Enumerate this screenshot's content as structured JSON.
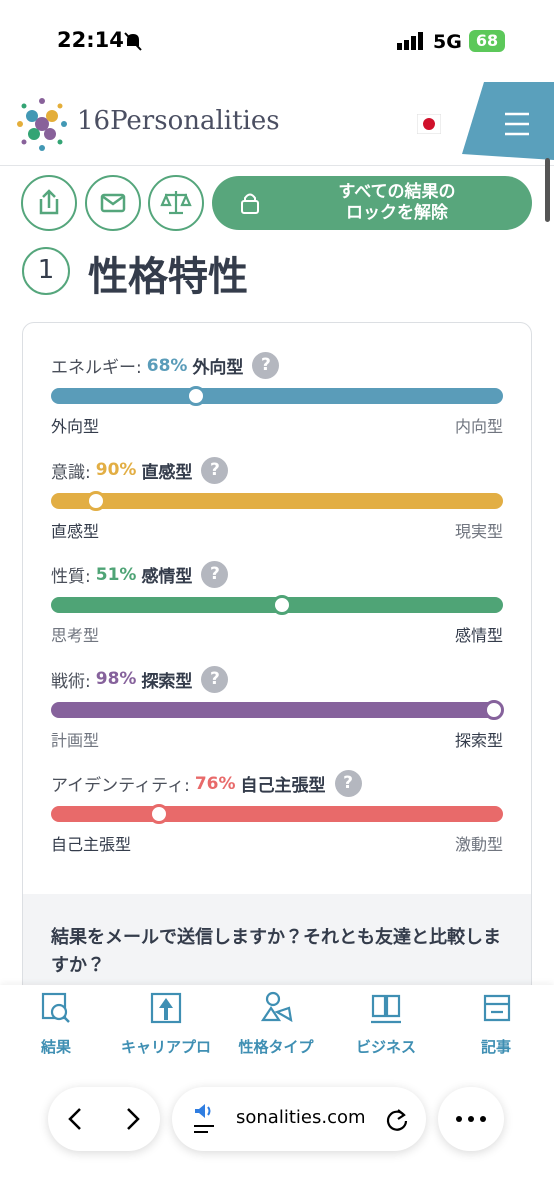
{
  "status_bar": {
    "time": "22:14",
    "network": "5G",
    "battery": "68"
  },
  "header": {
    "logo": "16Personalities"
  },
  "toolbar": {
    "unlock_button": "すべての結果の\nロックを解除"
  },
  "section": {
    "number": "1",
    "title": "性格特性"
  },
  "traits": {
    "help_icon": "?",
    "items": [
      {
        "label": "エネルギー:",
        "percent": {
          "value": 68,
          "label": "68%"
        },
        "type": "外向型",
        "side": "left",
        "color": "#5a9cb9",
        "left_pole": "外向型",
        "right_pole": "内向型"
      },
      {
        "label": "意識:",
        "percent": {
          "value": 90,
          "label": "90%"
        },
        "type": "直感型",
        "side": "left",
        "color": "#e2ae44",
        "left_pole": "直感型",
        "right_pole": "現実型"
      },
      {
        "label": "性質:",
        "percent": {
          "value": 51,
          "label": "51%"
        },
        "type": "感情型",
        "side": "right",
        "color": "#4fa476",
        "left_pole": "思考型",
        "right_pole": "感情型"
      },
      {
        "label": "戦術:",
        "percent": {
          "value": 98,
          "label": "98%"
        },
        "type": "探索型",
        "side": "right",
        "color": "#86629c",
        "left_pole": "計画型",
        "right_pole": "探索型"
      },
      {
        "label": "アイデンティティ:",
        "percent": {
          "value": 76,
          "label": "76%"
        },
        "type": "自己主張型",
        "side": "left",
        "color": "#e86a6a",
        "left_pole": "自己主張型",
        "right_pole": "激動型"
      }
    ]
  },
  "share_prompt": "結果をメールで送信しますか？それとも友達と比較しますか？",
  "bottom_nav": [
    "結果",
    "キャリアプロ",
    "性格タイプ",
    "ビジネス",
    "記事"
  ],
  "browser": {
    "url": "sonalities.com"
  }
}
